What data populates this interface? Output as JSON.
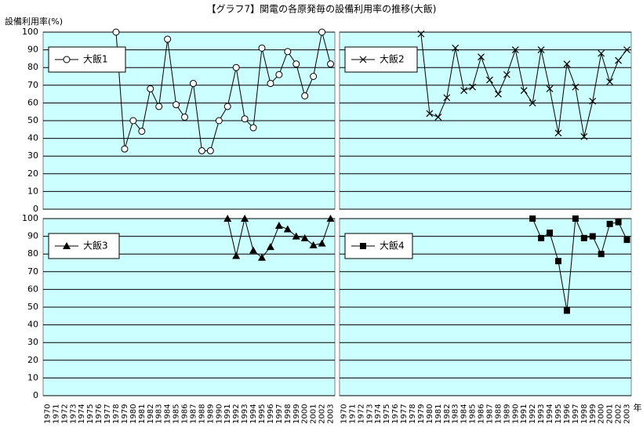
{
  "title": "【グラフ7】関電の各原発毎の設備利用率の推移(大飯)",
  "ylabel": "設備利用率(%)",
  "xlabel": "年",
  "chart_data": [
    {
      "type": "line",
      "marker": "circle",
      "color": "#000000",
      "background": "#ccffff",
      "grid": true,
      "categories": [
        "1970",
        "1971",
        "1972",
        "1973",
        "1974",
        "1975",
        "1976",
        "1977",
        "1978",
        "1979",
        "1980",
        "1981",
        "1982",
        "1983",
        "1984",
        "1985",
        "1986",
        "1987",
        "1988",
        "1989",
        "1990",
        "1991",
        "1992",
        "1993",
        "1994",
        "1995",
        "1996",
        "1997",
        "1998",
        "1999",
        "2000",
        "2001",
        "2002",
        "2003"
      ],
      "series": [
        {
          "name": "大飯1",
          "color": "#000000",
          "values": [
            null,
            null,
            null,
            null,
            null,
            null,
            null,
            null,
            100,
            34,
            50,
            44,
            68,
            58,
            96,
            59,
            52,
            71,
            33,
            33,
            50,
            58,
            80,
            51,
            46,
            91,
            71,
            76,
            89,
            82,
            64,
            75,
            100,
            82
          ]
        }
      ],
      "ylim": [
        0,
        100
      ],
      "yticks": [
        0,
        10,
        20,
        30,
        40,
        50,
        60,
        70,
        80,
        90,
        100
      ]
    },
    {
      "type": "line",
      "marker": "x",
      "color": "#000000",
      "background": "#ccffff",
      "grid": true,
      "categories": [
        "1970",
        "1971",
        "1972",
        "1973",
        "1974",
        "1975",
        "1976",
        "1977",
        "1978",
        "1979",
        "1980",
        "1981",
        "1982",
        "1983",
        "1984",
        "1985",
        "1986",
        "1987",
        "1988",
        "1989",
        "1990",
        "1991",
        "1992",
        "1993",
        "1994",
        "1995",
        "1996",
        "1997",
        "1998",
        "1999",
        "2000",
        "2001",
        "2002",
        "2003"
      ],
      "series": [
        {
          "name": "大飯2",
          "color": "#000000",
          "values": [
            null,
            null,
            null,
            null,
            null,
            null,
            null,
            null,
            null,
            99,
            54,
            52,
            63,
            91,
            67,
            69,
            86,
            73,
            65,
            76,
            90,
            67,
            60,
            90,
            68,
            43,
            82,
            69,
            41,
            61,
            88,
            72,
            84,
            90
          ]
        }
      ],
      "ylim": [
        0,
        100
      ],
      "yticks": [
        0,
        10,
        20,
        30,
        40,
        50,
        60,
        70,
        80,
        90,
        100
      ]
    },
    {
      "type": "line",
      "marker": "triangle",
      "color": "#000000",
      "background": "#ccffff",
      "grid": true,
      "categories": [
        "1970",
        "1971",
        "1972",
        "1973",
        "1974",
        "1975",
        "1976",
        "1977",
        "1978",
        "1979",
        "1980",
        "1981",
        "1982",
        "1983",
        "1984",
        "1985",
        "1986",
        "1987",
        "1988",
        "1989",
        "1990",
        "1991",
        "1992",
        "1993",
        "1994",
        "1995",
        "1996",
        "1997",
        "1998",
        "1999",
        "2000",
        "2001",
        "2002",
        "2003"
      ],
      "series": [
        {
          "name": "大飯3",
          "color": "#000000",
          "values": [
            null,
            null,
            null,
            null,
            null,
            null,
            null,
            null,
            null,
            null,
            null,
            null,
            null,
            null,
            null,
            null,
            null,
            null,
            null,
            null,
            null,
            100,
            79,
            100,
            82,
            78,
            84,
            96,
            94,
            90,
            89,
            85,
            86,
            100
          ]
        }
      ],
      "ylim": [
        0,
        100
      ],
      "yticks": [
        0,
        10,
        20,
        30,
        40,
        50,
        60,
        70,
        80,
        90,
        100
      ]
    },
    {
      "type": "line",
      "marker": "square",
      "color": "#000000",
      "background": "#ccffff",
      "grid": true,
      "categories": [
        "1970",
        "1971",
        "1972",
        "1973",
        "1974",
        "1975",
        "1976",
        "1977",
        "1978",
        "1979",
        "1980",
        "1981",
        "1982",
        "1983",
        "1984",
        "1985",
        "1986",
        "1987",
        "1988",
        "1989",
        "1990",
        "1991",
        "1992",
        "1993",
        "1994",
        "1995",
        "1996",
        "1997",
        "1998",
        "1999",
        "2000",
        "2001",
        "2002",
        "2003"
      ],
      "series": [
        {
          "name": "大飯4",
          "color": "#000000",
          "values": [
            null,
            null,
            null,
            null,
            null,
            null,
            null,
            null,
            null,
            null,
            null,
            null,
            null,
            null,
            null,
            null,
            null,
            null,
            null,
            null,
            null,
            null,
            100,
            89,
            92,
            76,
            48,
            100,
            89,
            90,
            80,
            97,
            98,
            88
          ]
        }
      ],
      "ylim": [
        0,
        100
      ],
      "yticks": [
        0,
        10,
        20,
        30,
        40,
        50,
        60,
        70,
        80,
        90,
        100
      ]
    }
  ]
}
